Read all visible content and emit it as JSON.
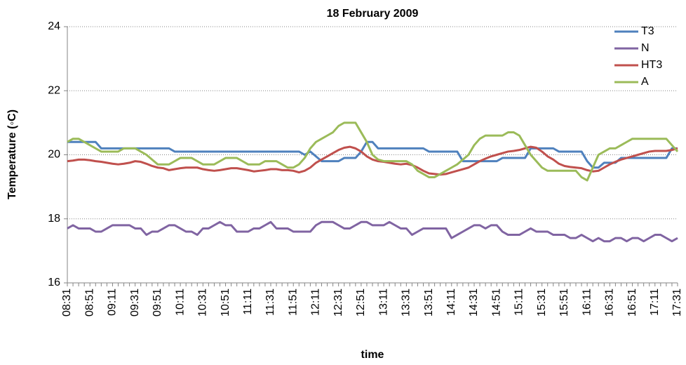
{
  "chart_data": {
    "type": "line",
    "title": "18 February 2009",
    "x_label": "time",
    "y_label": "Temperature (◦C)",
    "categories": [
      "08:31",
      null,
      null,
      null,
      "08:51",
      null,
      null,
      null,
      "09:11",
      null,
      null,
      null,
      "09:31",
      null,
      null,
      null,
      "09:51",
      null,
      null,
      null,
      "10:11",
      null,
      null,
      null,
      "10:31",
      null,
      null,
      null,
      "10:51",
      null,
      null,
      null,
      "11:11",
      null,
      null,
      null,
      "11:31",
      null,
      null,
      null,
      "11:51",
      null,
      null,
      null,
      "12:11",
      null,
      null,
      null,
      "12:31",
      null,
      null,
      null,
      "12:51",
      null,
      null,
      null,
      "13:11",
      null,
      null,
      null,
      "13:31",
      null,
      null,
      null,
      "13:51",
      null,
      null,
      null,
      "14:11",
      null,
      null,
      null,
      "14:31",
      null,
      null,
      null,
      "14:51",
      null,
      null,
      null,
      "15:11",
      null,
      null,
      null,
      "15:31",
      null,
      null,
      null,
      "15:51",
      null,
      null,
      null,
      "16:11",
      null,
      null,
      null,
      "16:31",
      null,
      null,
      null,
      "16:51",
      null,
      null,
      null,
      "17:11",
      null,
      null,
      null,
      "17:31"
    ],
    "series": [
      {
        "name": "T3",
        "color": "#4f81bd",
        "values": [
          20.4,
          20.4,
          20.4,
          20.4,
          20.4,
          20.4,
          20.2,
          20.2,
          20.2,
          20.2,
          20.2,
          20.2,
          20.2,
          20.2,
          20.2,
          20.2,
          20.2,
          20.2,
          20.2,
          20.1,
          20.1,
          20.1,
          20.1,
          20.1,
          20.1,
          20.1,
          20.1,
          20.1,
          20.1,
          20.1,
          20.1,
          20.1,
          20.1,
          20.1,
          20.1,
          20.1,
          20.1,
          20.1,
          20.1,
          20.1,
          20.1,
          20.1,
          20.0,
          20.1,
          19.95,
          19.8,
          19.8,
          19.8,
          19.8,
          19.9,
          19.9,
          19.9,
          20.1,
          20.4,
          20.4,
          20.2,
          20.2,
          20.2,
          20.2,
          20.2,
          20.2,
          20.2,
          20.2,
          20.2,
          20.1,
          20.1,
          20.1,
          20.1,
          20.1,
          20.1,
          19.8,
          19.8,
          19.8,
          19.8,
          19.8,
          19.8,
          19.8,
          19.9,
          19.9,
          19.9,
          19.9,
          19.9,
          20.2,
          20.2,
          20.2,
          20.2,
          20.2,
          20.1,
          20.1,
          20.1,
          20.1,
          20.1,
          19.8,
          19.6,
          19.6,
          19.75,
          19.75,
          19.75,
          19.9,
          19.9,
          19.9,
          19.9,
          19.9,
          19.9,
          19.9,
          19.9,
          19.9,
          20.2,
          20.2
        ]
      },
      {
        "name": "N",
        "color": "#8064a2",
        "values": [
          17.7,
          17.8,
          17.7,
          17.7,
          17.7,
          17.6,
          17.6,
          17.7,
          17.8,
          17.8,
          17.8,
          17.8,
          17.7,
          17.7,
          17.5,
          17.6,
          17.6,
          17.7,
          17.8,
          17.8,
          17.7,
          17.6,
          17.6,
          17.5,
          17.7,
          17.7,
          17.8,
          17.9,
          17.8,
          17.8,
          17.6,
          17.6,
          17.6,
          17.7,
          17.7,
          17.8,
          17.9,
          17.7,
          17.7,
          17.7,
          17.6,
          17.6,
          17.6,
          17.6,
          17.8,
          17.9,
          17.9,
          17.9,
          17.8,
          17.7,
          17.7,
          17.8,
          17.9,
          17.9,
          17.8,
          17.8,
          17.8,
          17.9,
          17.8,
          17.7,
          17.7,
          17.5,
          17.6,
          17.7,
          17.7,
          17.7,
          17.7,
          17.7,
          17.4,
          17.5,
          17.6,
          17.7,
          17.8,
          17.8,
          17.7,
          17.8,
          17.8,
          17.6,
          17.5,
          17.5,
          17.5,
          17.6,
          17.7,
          17.6,
          17.6,
          17.6,
          17.5,
          17.5,
          17.5,
          17.4,
          17.4,
          17.5,
          17.4,
          17.3,
          17.4,
          17.3,
          17.3,
          17.4,
          17.4,
          17.3,
          17.4,
          17.4,
          17.3,
          17.4,
          17.5,
          17.5,
          17.4,
          17.3,
          17.4
        ]
      },
      {
        "name": "HT3",
        "color": "#c0504d",
        "values": [
          19.8,
          19.82,
          19.85,
          19.85,
          19.83,
          19.8,
          19.78,
          19.75,
          19.72,
          19.7,
          19.72,
          19.75,
          19.8,
          19.78,
          19.72,
          19.65,
          19.6,
          19.58,
          19.52,
          19.55,
          19.58,
          19.6,
          19.6,
          19.6,
          19.55,
          19.52,
          19.5,
          19.52,
          19.55,
          19.58,
          19.58,
          19.55,
          19.52,
          19.48,
          19.5,
          19.52,
          19.55,
          19.55,
          19.52,
          19.52,
          19.5,
          19.45,
          19.5,
          19.6,
          19.75,
          19.85,
          19.95,
          20.05,
          20.15,
          20.22,
          20.25,
          20.2,
          20.1,
          19.95,
          19.85,
          19.8,
          19.78,
          19.75,
          19.72,
          19.7,
          19.72,
          19.68,
          19.6,
          19.5,
          19.42,
          19.4,
          19.38,
          19.4,
          19.45,
          19.5,
          19.55,
          19.6,
          19.7,
          19.8,
          19.88,
          19.95,
          20.0,
          20.05,
          20.1,
          20.12,
          20.15,
          20.2,
          20.25,
          20.22,
          20.1,
          19.95,
          19.85,
          19.72,
          19.65,
          19.62,
          19.6,
          19.58,
          19.52,
          19.48,
          19.5,
          19.6,
          19.7,
          19.78,
          19.85,
          19.9,
          19.95,
          20.0,
          20.05,
          20.1,
          20.12,
          20.12,
          20.12,
          20.15,
          20.2
        ]
      },
      {
        "name": "A",
        "color": "#9bbb59",
        "values": [
          20.4,
          20.5,
          20.5,
          20.4,
          20.3,
          20.2,
          20.1,
          20.1,
          20.1,
          20.1,
          20.2,
          20.2,
          20.2,
          20.1,
          20.0,
          19.85,
          19.7,
          19.7,
          19.7,
          19.8,
          19.9,
          19.9,
          19.9,
          19.8,
          19.7,
          19.7,
          19.7,
          19.8,
          19.9,
          19.9,
          19.9,
          19.8,
          19.7,
          19.7,
          19.7,
          19.8,
          19.8,
          19.8,
          19.7,
          19.6,
          19.6,
          19.7,
          19.9,
          20.2,
          20.4,
          20.5,
          20.6,
          20.7,
          20.9,
          21.0,
          21.0,
          21.0,
          20.7,
          20.4,
          20.0,
          19.85,
          19.8,
          19.8,
          19.8,
          19.8,
          19.8,
          19.7,
          19.5,
          19.4,
          19.3,
          19.3,
          19.4,
          19.5,
          19.6,
          19.7,
          19.85,
          20.0,
          20.3,
          20.5,
          20.6,
          20.6,
          20.6,
          20.6,
          20.7,
          20.7,
          20.6,
          20.3,
          20.0,
          19.8,
          19.6,
          19.5,
          19.5,
          19.5,
          19.5,
          19.5,
          19.5,
          19.3,
          19.2,
          19.6,
          20.0,
          20.1,
          20.2,
          20.2,
          20.3,
          20.4,
          20.5,
          20.5,
          20.5,
          20.5,
          20.5,
          20.5,
          20.5,
          20.3,
          20.1
        ]
      }
    ],
    "ylim": [
      16,
      24
    ],
    "yticks": [
      16,
      18,
      20,
      22,
      24
    ],
    "grid": true,
    "legend": "top-right"
  }
}
